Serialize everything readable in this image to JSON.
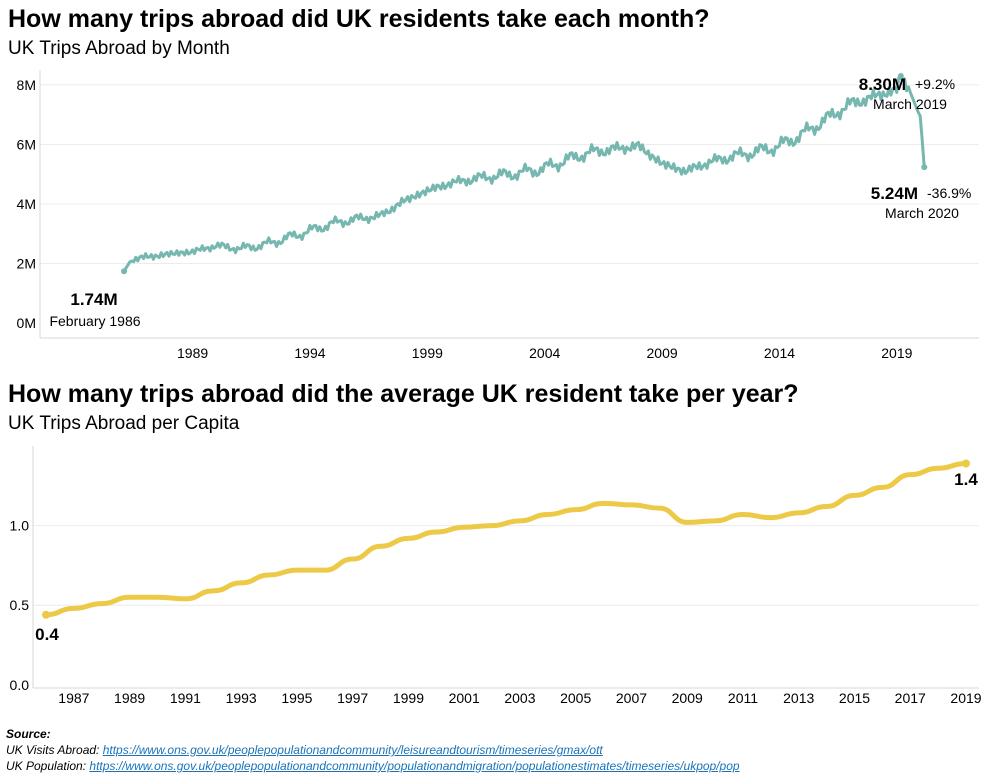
{
  "chart_data": [
    {
      "type": "line",
      "title": "How many trips abroad did UK residents take each month?",
      "subtitle": "UK Trips Abroad by Month",
      "y_ticks": [
        "0M",
        "2M",
        "4M",
        "6M",
        "8M"
      ],
      "y_tick_values": [
        0,
        2,
        4,
        6,
        8
      ],
      "x_ticks": [
        "1989",
        "1994",
        "1999",
        "2004",
        "2009",
        "2014",
        "2019"
      ],
      "x_tick_values": [
        1989,
        1994,
        1999,
        2004,
        2009,
        2014,
        2019
      ],
      "xlim": [
        1982.5,
        2022.5
      ],
      "ylim": [
        -0.5,
        8.5
      ],
      "grid": true,
      "line_color": "#76b7b0",
      "anchors": [
        {
          "x": 1986.08,
          "y": 1.74
        },
        {
          "x": 1986.4,
          "y": 2.15
        },
        {
          "x": 1988.0,
          "y": 2.32
        },
        {
          "x": 1989.0,
          "y": 2.4
        },
        {
          "x": 1990.0,
          "y": 2.6
        },
        {
          "x": 1991.0,
          "y": 2.5
        },
        {
          "x": 1992.0,
          "y": 2.62
        },
        {
          "x": 1993.0,
          "y": 2.85
        },
        {
          "x": 1994.0,
          "y": 3.1
        },
        {
          "x": 1995.0,
          "y": 3.35
        },
        {
          "x": 1996.0,
          "y": 3.5
        },
        {
          "x": 1997.0,
          "y": 3.6
        },
        {
          "x": 1998.0,
          "y": 4.1
        },
        {
          "x": 1999.0,
          "y": 4.45
        },
        {
          "x": 2000.0,
          "y": 4.7
        },
        {
          "x": 2001.0,
          "y": 4.85
        },
        {
          "x": 2002.0,
          "y": 4.95
        },
        {
          "x": 2003.0,
          "y": 5.05
        },
        {
          "x": 2004.0,
          "y": 5.2
        },
        {
          "x": 2005.0,
          "y": 5.5
        },
        {
          "x": 2006.0,
          "y": 5.75
        },
        {
          "x": 2007.0,
          "y": 5.85
        },
        {
          "x": 2008.0,
          "y": 5.95
        },
        {
          "x": 2009.0,
          "y": 5.35
        },
        {
          "x": 2010.0,
          "y": 5.1
        },
        {
          "x": 2011.0,
          "y": 5.4
        },
        {
          "x": 2012.0,
          "y": 5.6
        },
        {
          "x": 2013.0,
          "y": 5.75
        },
        {
          "x": 2014.0,
          "y": 5.95
        },
        {
          "x": 2015.0,
          "y": 6.35
        },
        {
          "x": 2016.0,
          "y": 6.85
        },
        {
          "x": 2017.0,
          "y": 7.35
        },
        {
          "x": 2018.0,
          "y": 7.6
        },
        {
          "x": 2019.0,
          "y": 7.85
        },
        {
          "x": 2019.17,
          "y": 8.3
        },
        {
          "x": 2019.6,
          "y": 7.7
        },
        {
          "x": 2019.9,
          "y": 7.1
        },
        {
          "x": 2020.0,
          "y": 6.95
        },
        {
          "x": 2020.17,
          "y": 5.24
        }
      ],
      "noise_amplitude": 0.16,
      "annotations": [
        {
          "value": "1.74M",
          "label": "February 1986",
          "x": 1986.08,
          "y": 1.74
        },
        {
          "value": "8.30M",
          "change": "+9.2%",
          "label": "March 2019",
          "x": 2019.17,
          "y": 8.3
        },
        {
          "value": "5.24M",
          "change": "-36.9%",
          "label": "March 2020",
          "x": 2020.17,
          "y": 5.24
        }
      ]
    },
    {
      "type": "line",
      "title": "How many trips abroad did the average UK resident take per year?",
      "subtitle": "UK Trips Abroad per Capita",
      "y_ticks": [
        "0.0",
        "0.5",
        "1.0"
      ],
      "y_tick_values": [
        0,
        0.5,
        1.0
      ],
      "x_ticks": [
        "1987",
        "1989",
        "1991",
        "1993",
        "1995",
        "1997",
        "1999",
        "2001",
        "2003",
        "2005",
        "2007",
        "2009",
        "2011",
        "2013",
        "2015",
        "2017",
        "2019"
      ],
      "x_tick_values": [
        1987,
        1989,
        1991,
        1993,
        1995,
        1997,
        1999,
        2001,
        2003,
        2005,
        2007,
        2009,
        2011,
        2013,
        2015,
        2017,
        2019
      ],
      "xlim": [
        1985.7,
        2019.6
      ],
      "ylim": [
        -0.02,
        1.5
      ],
      "grid": true,
      "line_color": "#edc948",
      "x": [
        1986,
        1987,
        1988,
        1989,
        1990,
        1991,
        1992,
        1993,
        1994,
        1995,
        1996,
        1997,
        1998,
        1999,
        2000,
        2001,
        2002,
        2003,
        2004,
        2005,
        2006,
        2007,
        2008,
        2009,
        2010,
        2011,
        2012,
        2013,
        2014,
        2015,
        2016,
        2017,
        2018,
        2019
      ],
      "y": [
        0.44,
        0.48,
        0.51,
        0.55,
        0.55,
        0.54,
        0.59,
        0.64,
        0.69,
        0.72,
        0.72,
        0.79,
        0.87,
        0.92,
        0.96,
        0.99,
        1.0,
        1.03,
        1.07,
        1.1,
        1.14,
        1.13,
        1.11,
        1.02,
        1.03,
        1.07,
        1.05,
        1.08,
        1.12,
        1.19,
        1.24,
        1.32,
        1.36,
        1.39
      ],
      "annotations": [
        {
          "value": "0.4",
          "x": 1986,
          "y": 0.44
        },
        {
          "value": "1.4",
          "x": 2019,
          "y": 1.39
        }
      ]
    }
  ],
  "source": {
    "header": "Source:",
    "visits_label": "UK Visits Abroad: ",
    "visits_url": "https://www.ons.gov.uk/peoplepopulationandcommunity/leisureandtourism/timeseries/gmax/ott",
    "population_label": "UK Population: ",
    "population_url": "https://www.ons.gov.uk/peoplepopulationandcommunity/populationandmigration/populationestimates/timeseries/ukpop/pop"
  }
}
